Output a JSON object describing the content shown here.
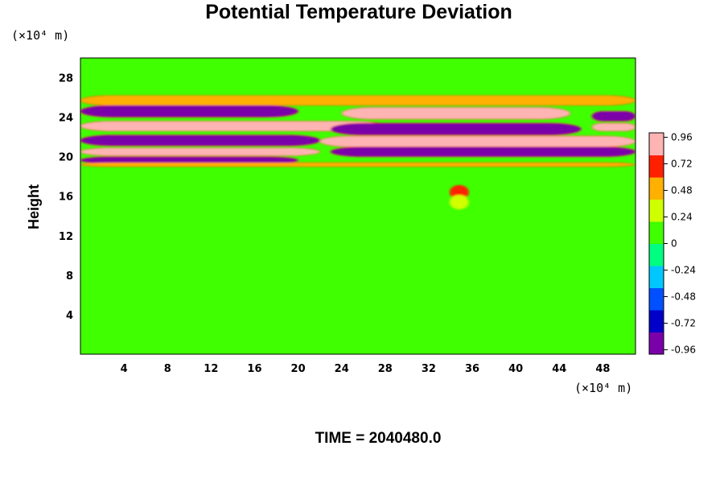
{
  "chart_data": {
    "type": "heatmap",
    "title": "Potential Temperature Deviation",
    "ylabel": "Height",
    "x_unit": "(×10⁴ m)",
    "y_unit": "(×10⁴ m)",
    "xlim": [
      0,
      51
    ],
    "ylim": [
      0,
      30
    ],
    "x_ticks": [
      "4",
      "8",
      "12",
      "16",
      "20",
      "24",
      "28",
      "32",
      "36",
      "40",
      "44",
      "48"
    ],
    "y_ticks": [
      "4",
      "8",
      "12",
      "16",
      "20",
      "24",
      "28"
    ],
    "colorbar": {
      "range": [
        -1.0,
        1.0
      ],
      "tick_labels": [
        "0.96",
        "0.72",
        "0.48",
        "0.24",
        "0",
        "-0.24",
        "-0.48",
        "-0.72",
        "-0.96"
      ],
      "colors_low_to_high": [
        "#7a00aa",
        "#0000c8",
        "#0050ff",
        "#00c8ff",
        "#00ff80",
        "#40ff00",
        "#d0ff00",
        "#ffb000",
        "#ff2000",
        "#ffb4b4"
      ]
    },
    "background_value": 0.06,
    "bands": [
      {
        "x": [
          0,
          51
        ],
        "y": [
          25.2,
          26.2
        ],
        "value": 0.55
      },
      {
        "x": [
          0,
          20
        ],
        "y": [
          24.0,
          25.2
        ],
        "value": -1.0
      },
      {
        "x": [
          0,
          28
        ],
        "y": [
          22.6,
          23.6
        ],
        "value": 1.0
      },
      {
        "x": [
          0,
          22
        ],
        "y": [
          21.1,
          22.2
        ],
        "value": -1.0
      },
      {
        "x": [
          0,
          22
        ],
        "y": [
          20.1,
          20.9
        ],
        "value": 1.0
      },
      {
        "x": [
          0,
          20
        ],
        "y": [
          19.3,
          20.0
        ],
        "value": -1.0
      },
      {
        "x": [
          24,
          45
        ],
        "y": [
          23.8,
          25.0
        ],
        "value": 1.0
      },
      {
        "x": [
          23,
          46
        ],
        "y": [
          22.2,
          23.4
        ],
        "value": -1.0
      },
      {
        "x": [
          22,
          51
        ],
        "y": [
          21.0,
          22.1
        ],
        "value": 1.0
      },
      {
        "x": [
          23,
          51
        ],
        "y": [
          20.0,
          21.0
        ],
        "value": -1.0
      },
      {
        "x": [
          47,
          51
        ],
        "y": [
          23.6,
          24.6
        ],
        "value": -1.0
      },
      {
        "x": [
          47,
          51
        ],
        "y": [
          22.6,
          23.4
        ],
        "value": 1.0
      },
      {
        "x": [
          0,
          51
        ],
        "y": [
          19.0,
          19.4
        ],
        "value": 0.4
      }
    ],
    "features": [
      {
        "x": 34.8,
        "y": 16.4,
        "value": 0.7
      },
      {
        "x": 34.8,
        "y": 15.4,
        "value": 0.35
      }
    ],
    "time_label": "TIME = 2040480.0"
  }
}
